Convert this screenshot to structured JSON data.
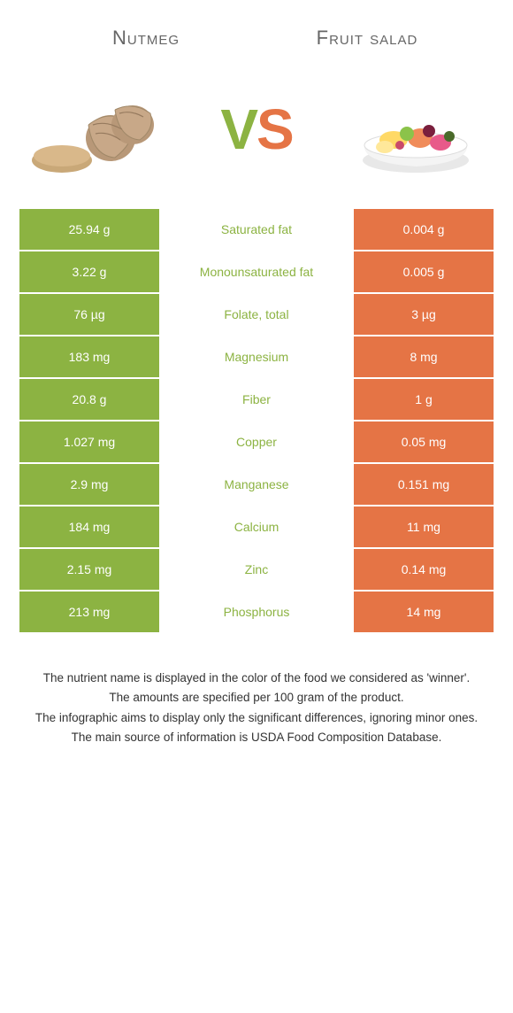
{
  "header": {
    "left_title": "Nutmeg",
    "right_title": "Fruit salad"
  },
  "vs": {
    "left_letter": "V",
    "right_letter": "S",
    "left_color": "#8cb342",
    "right_color": "#e57445"
  },
  "colors": {
    "left_bg": "#8cb342",
    "right_bg": "#e57445",
    "left_text_winner": "#8cb342",
    "right_text_winner": "#e57445",
    "row_border": "#ffffff",
    "header_text": "#666666",
    "footer_text": "#333333"
  },
  "table": {
    "rows": [
      {
        "left": "25.94 g",
        "label": "Saturated fat",
        "right": "0.004 g",
        "winner": "left"
      },
      {
        "left": "3.22 g",
        "label": "Monounsaturated fat",
        "right": "0.005 g",
        "winner": "left"
      },
      {
        "left": "76 µg",
        "label": "Folate, total",
        "right": "3 µg",
        "winner": "left"
      },
      {
        "left": "183 mg",
        "label": "Magnesium",
        "right": "8 mg",
        "winner": "left"
      },
      {
        "left": "20.8 g",
        "label": "Fiber",
        "right": "1 g",
        "winner": "left"
      },
      {
        "left": "1.027 mg",
        "label": "Copper",
        "right": "0.05 mg",
        "winner": "left"
      },
      {
        "left": "2.9 mg",
        "label": "Manganese",
        "right": "0.151 mg",
        "winner": "left"
      },
      {
        "left": "184 mg",
        "label": "Calcium",
        "right": "11 mg",
        "winner": "left"
      },
      {
        "left": "2.15 mg",
        "label": "Zinc",
        "right": "0.14 mg",
        "winner": "left"
      },
      {
        "left": "213 mg",
        "label": "Phosphorus",
        "right": "14 mg",
        "winner": "left"
      }
    ]
  },
  "footer": {
    "line1": "The nutrient name is displayed in the color of the food we considered as 'winner'.",
    "line2": "The amounts are specified per 100 gram of the product.",
    "line3": "The infographic aims to display only the significant differences, ignoring minor ones.",
    "line4": "The main source of information is USDA Food Composition Database."
  }
}
